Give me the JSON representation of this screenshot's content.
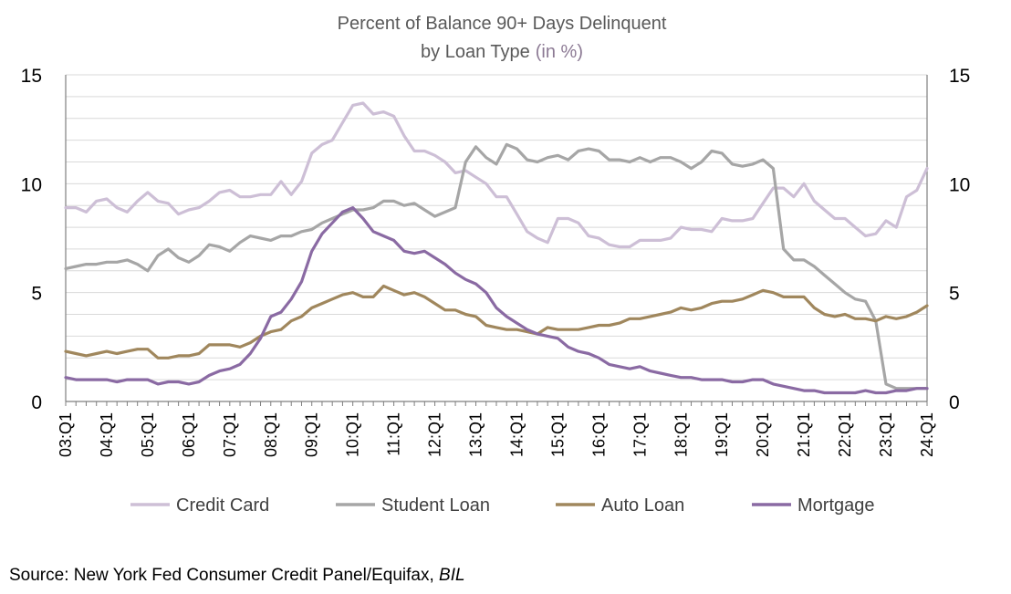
{
  "chart_data": {
    "type": "line",
    "title": "Percent of Balance 90+ Days Delinquent",
    "title_line2": "by Loan Type",
    "title_unit": "(in %)",
    "xlabel": "",
    "ylabel": "",
    "ylim": [
      0,
      15
    ],
    "y_ticks": [
      "0",
      "5",
      "10",
      "15"
    ],
    "x_tick_labels": [
      "03:Q1",
      "04:Q1",
      "05:Q1",
      "06:Q1",
      "07:Q1",
      "08:Q1",
      "09:Q1",
      "10:Q1",
      "11:Q1",
      "12:Q1",
      "13:Q1",
      "14:Q1",
      "15:Q1",
      "16:Q1",
      "17:Q1",
      "18:Q1",
      "19:Q1",
      "20:Q1",
      "21:Q1",
      "22:Q1",
      "23:Q1",
      "24:Q1"
    ],
    "x_start": "03:Q1",
    "x_end": "24:Q1",
    "grid": "horizontal",
    "legend_position": "bottom",
    "series": [
      {
        "name": "Credit Card",
        "color": "#cdbfd6",
        "values": [
          8.9,
          8.9,
          8.7,
          9.2,
          9.3,
          8.9,
          8.7,
          9.2,
          9.6,
          9.2,
          9.1,
          8.6,
          8.8,
          8.9,
          9.2,
          9.6,
          9.7,
          9.4,
          9.4,
          9.5,
          9.5,
          10.1,
          9.5,
          10.1,
          11.4,
          11.8,
          12.0,
          12.8,
          13.6,
          13.7,
          13.2,
          13.3,
          13.1,
          12.2,
          11.5,
          11.5,
          11.3,
          11.0,
          10.5,
          10.6,
          10.3,
          10.0,
          9.4,
          9.4,
          8.6,
          7.8,
          7.5,
          7.3,
          8.4,
          8.4,
          8.2,
          7.6,
          7.5,
          7.2,
          7.1,
          7.1,
          7.4,
          7.4,
          7.4,
          7.5,
          8.0,
          7.9,
          7.9,
          7.8,
          8.4,
          8.3,
          8.3,
          8.4,
          9.1,
          9.8,
          9.8,
          9.4,
          10.0,
          9.2,
          8.8,
          8.4,
          8.4,
          8.0,
          7.6,
          7.7,
          8.3,
          8.0,
          9.4,
          9.7,
          10.7
        ]
      },
      {
        "name": "Student Loan",
        "color": "#a6a6a6",
        "values": [
          6.1,
          6.2,
          6.3,
          6.3,
          6.4,
          6.4,
          6.5,
          6.3,
          6.0,
          6.7,
          7.0,
          6.6,
          6.4,
          6.7,
          7.2,
          7.1,
          6.9,
          7.3,
          7.6,
          7.5,
          7.4,
          7.6,
          7.6,
          7.8,
          7.9,
          8.2,
          8.4,
          8.6,
          8.8,
          8.8,
          8.9,
          9.2,
          9.2,
          9.0,
          9.1,
          8.8,
          8.5,
          8.7,
          8.9,
          11.0,
          11.7,
          11.2,
          10.9,
          11.8,
          11.6,
          11.1,
          11.0,
          11.2,
          11.3,
          11.1,
          11.5,
          11.6,
          11.5,
          11.1,
          11.1,
          11.0,
          11.2,
          11.0,
          11.2,
          11.2,
          11.0,
          10.7,
          11.0,
          11.5,
          11.4,
          10.9,
          10.8,
          10.9,
          11.1,
          10.7,
          7.0,
          6.5,
          6.5,
          6.2,
          5.8,
          5.4,
          5.0,
          4.7,
          4.6,
          3.7,
          0.8,
          0.6,
          0.6,
          0.6,
          0.6
        ]
      },
      {
        "name": "Auto Loan",
        "color": "#a0875d",
        "values": [
          2.3,
          2.2,
          2.1,
          2.2,
          2.3,
          2.2,
          2.3,
          2.4,
          2.4,
          2.0,
          2.0,
          2.1,
          2.1,
          2.2,
          2.6,
          2.6,
          2.6,
          2.5,
          2.7,
          3.0,
          3.2,
          3.3,
          3.7,
          3.9,
          4.3,
          4.5,
          4.7,
          4.9,
          5.0,
          4.8,
          4.8,
          5.3,
          5.1,
          4.9,
          5.0,
          4.8,
          4.5,
          4.2,
          4.2,
          4.0,
          3.9,
          3.5,
          3.4,
          3.3,
          3.3,
          3.2,
          3.1,
          3.4,
          3.3,
          3.3,
          3.3,
          3.4,
          3.5,
          3.5,
          3.6,
          3.8,
          3.8,
          3.9,
          4.0,
          4.1,
          4.3,
          4.2,
          4.3,
          4.5,
          4.6,
          4.6,
          4.7,
          4.9,
          5.1,
          5.0,
          4.8,
          4.8,
          4.8,
          4.3,
          4.0,
          3.9,
          4.0,
          3.8,
          3.8,
          3.7,
          3.9,
          3.8,
          3.9,
          4.1,
          4.4
        ]
      },
      {
        "name": "Mortgage",
        "color": "#8a6aa3",
        "values": [
          1.1,
          1.0,
          1.0,
          1.0,
          1.0,
          0.9,
          1.0,
          1.0,
          1.0,
          0.8,
          0.9,
          0.9,
          0.8,
          0.9,
          1.2,
          1.4,
          1.5,
          1.7,
          2.2,
          2.9,
          3.9,
          4.1,
          4.7,
          5.5,
          6.9,
          7.7,
          8.2,
          8.7,
          8.9,
          8.4,
          7.8,
          7.6,
          7.4,
          6.9,
          6.8,
          6.9,
          6.6,
          6.3,
          5.9,
          5.6,
          5.4,
          5.0,
          4.3,
          3.9,
          3.6,
          3.3,
          3.1,
          3.0,
          2.9,
          2.5,
          2.3,
          2.2,
          2.0,
          1.7,
          1.6,
          1.5,
          1.6,
          1.4,
          1.3,
          1.2,
          1.1,
          1.1,
          1.0,
          1.0,
          1.0,
          0.9,
          0.9,
          1.0,
          1.0,
          0.8,
          0.7,
          0.6,
          0.5,
          0.5,
          0.4,
          0.4,
          0.4,
          0.4,
          0.5,
          0.4,
          0.4,
          0.5,
          0.5,
          0.6,
          0.6
        ]
      }
    ]
  },
  "source": {
    "prefix": "Source: New York Fed Consumer Credit Panel/Equifax, ",
    "italic": "BIL"
  }
}
